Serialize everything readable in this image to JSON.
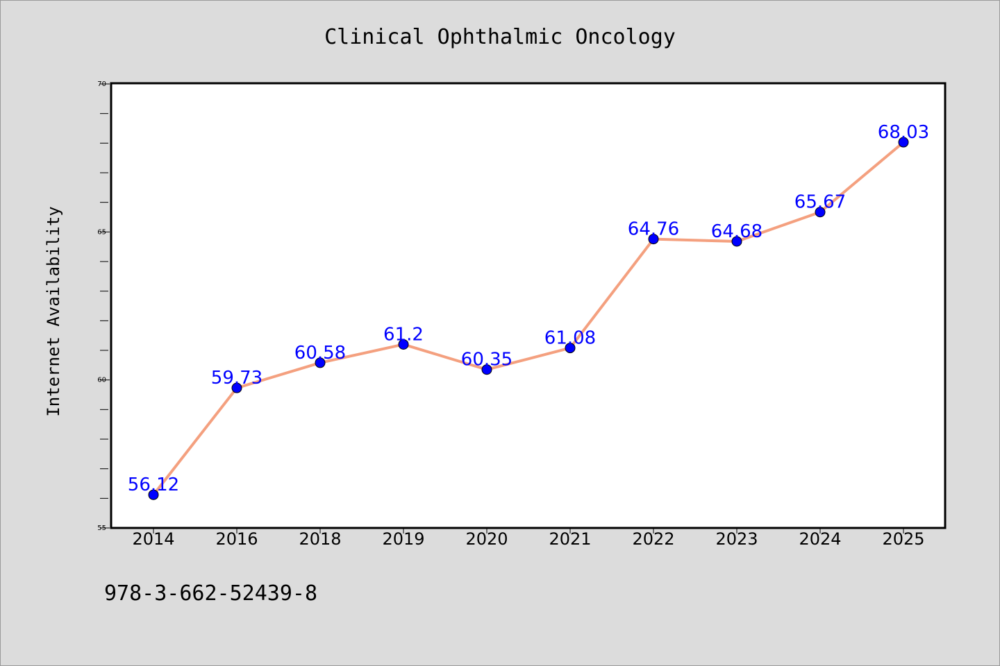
{
  "chart_data": {
    "type": "line",
    "title": "Clinical Ophthalmic Oncology",
    "xlabel": "",
    "ylabel": "Internet Availability",
    "categories": [
      "2014",
      "2016",
      "2018",
      "2019",
      "2020",
      "2021",
      "2022",
      "2023",
      "2024",
      "2025"
    ],
    "values": [
      56.12,
      59.73,
      60.58,
      61.2,
      60.35,
      61.08,
      64.76,
      64.68,
      65.67,
      68.03
    ],
    "data_labels": [
      "56.12",
      "59.73",
      "60.58",
      "61.2",
      "60.35",
      "61.08",
      "64.76",
      "64.68",
      "65.67",
      "68.03"
    ],
    "ylim": [
      55,
      70
    ],
    "yticks": [
      "55",
      "60",
      "65",
      "70"
    ],
    "grid": false,
    "colors": {
      "line": "#f4a07f",
      "marker": "#0000ff",
      "data_label": "#0000ff",
      "plot_background": "#ffffff",
      "figure_background": "#dcdcdc"
    }
  },
  "footer_text": "978-3-662-52439-8"
}
